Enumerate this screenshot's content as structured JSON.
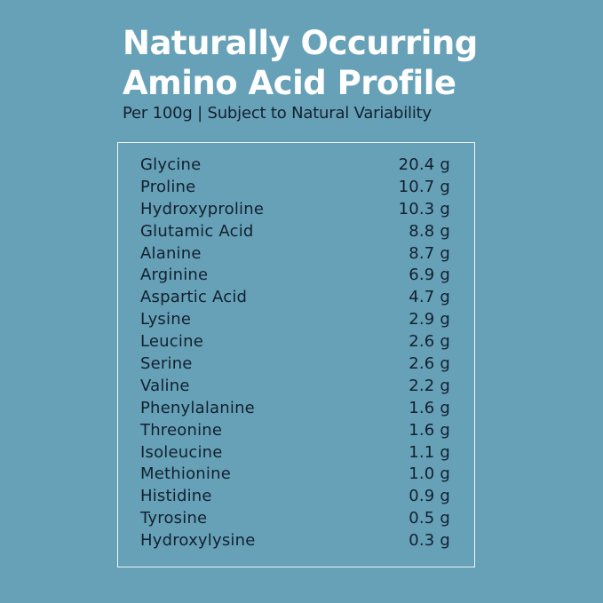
{
  "header": {
    "title_lines": [
      "Naturally Occurring",
      "Amino Acid Profile"
    ],
    "subtitle": "Per 100g | Subject to Natural Variability"
  },
  "table": {
    "rows": [
      [
        "Glycine",
        "20.4 g"
      ],
      [
        "Proline",
        "10.7 g"
      ],
      [
        "Hydroxyproline",
        "10.3 g"
      ],
      [
        "Glutamic Acid",
        "8.8 g"
      ],
      [
        "Alanine",
        "8.7 g"
      ],
      [
        "Arginine",
        "6.9 g"
      ],
      [
        "Aspartic Acid",
        "4.7 g"
      ],
      [
        "Lysine",
        "2.9 g"
      ],
      [
        "Leucine",
        "2.6 g"
      ],
      [
        "Serine",
        "2.6 g"
      ],
      [
        "Valine",
        "2.2 g"
      ],
      [
        "Phenylalanine",
        "1.6 g"
      ],
      [
        "Threonine",
        "1.6 g"
      ],
      [
        "Isoleucine",
        "1.1 g"
      ],
      [
        "Methionine",
        "1.0 g"
      ],
      [
        "Histidine",
        "0.9 g"
      ],
      [
        "Tyrosine",
        "0.5 g"
      ],
      [
        "Hydroxylysine",
        "0.3 g"
      ]
    ]
  }
}
